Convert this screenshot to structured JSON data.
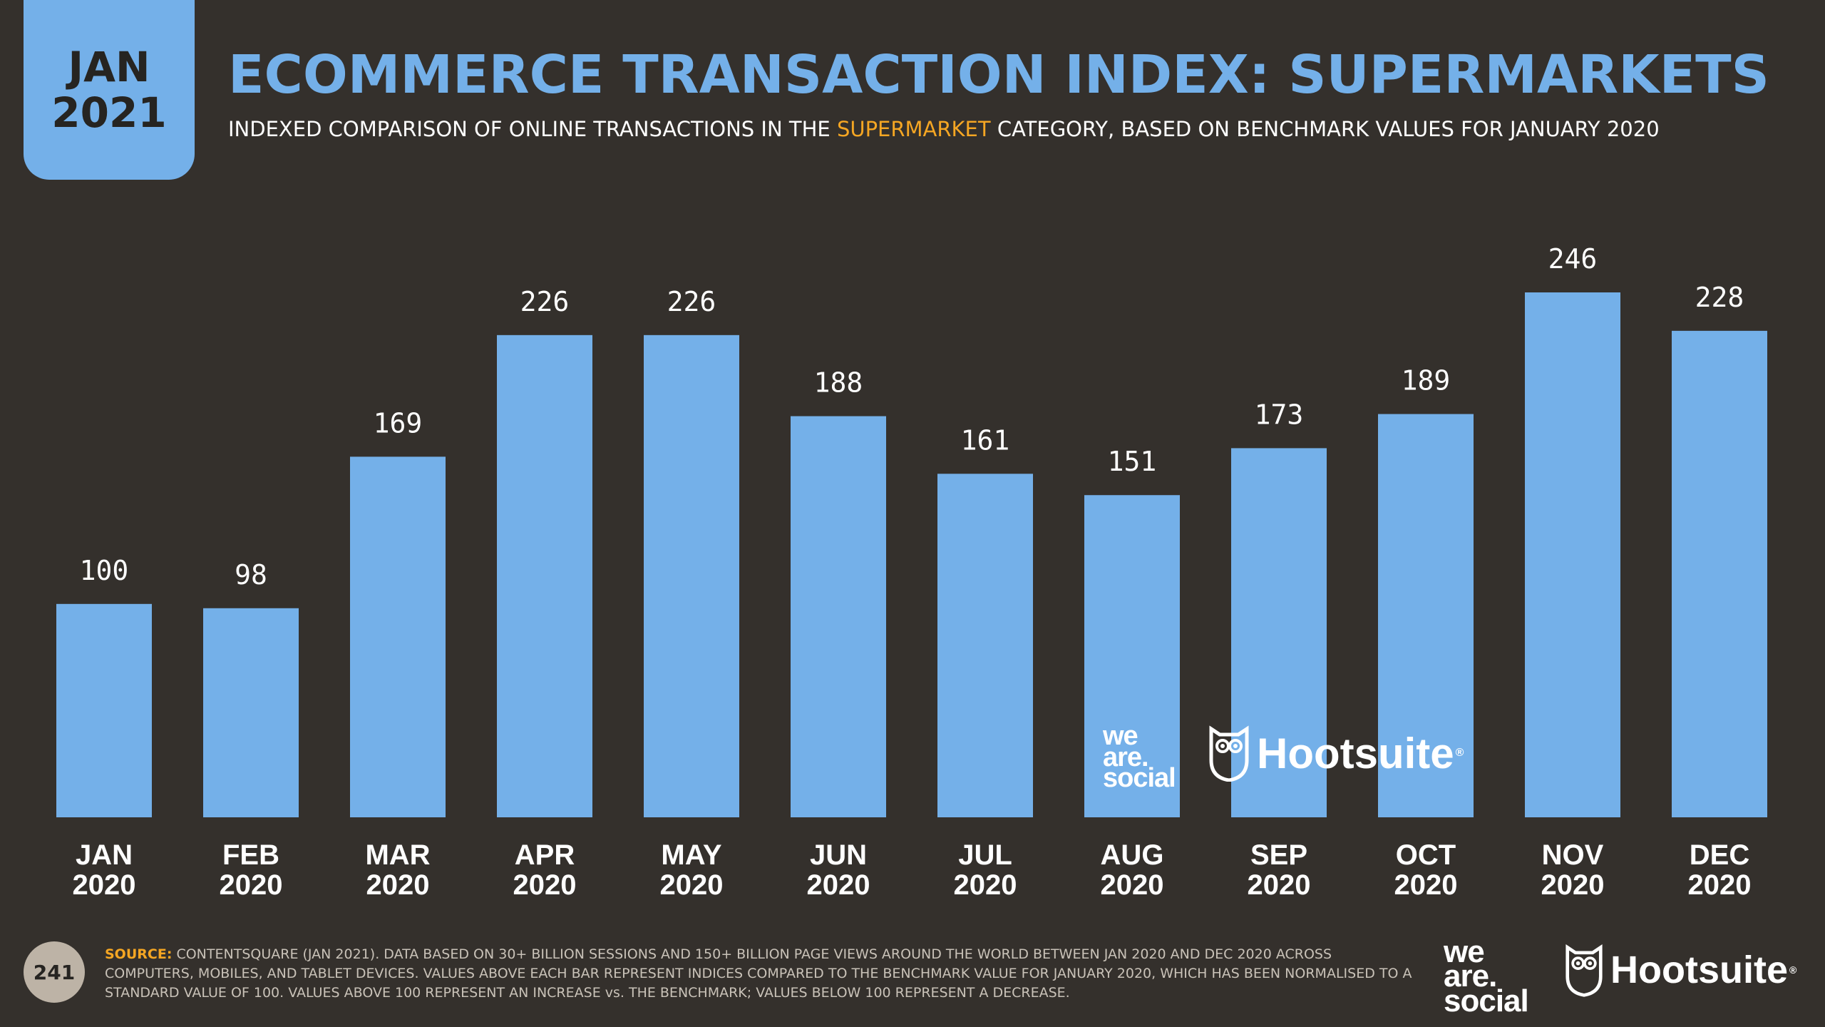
{
  "badge": {
    "month": "JAN",
    "year": "2021"
  },
  "header": {
    "title": "ECOMMERCE TRANSACTION INDEX: SUPERMARKETS",
    "subtitle_before": "INDEXED COMPARISON OF ONLINE TRANSACTIONS IN THE ",
    "subtitle_highlight": "SUPERMARKET",
    "subtitle_after": " CATEGORY, BASED ON BENCHMARK VALUES FOR JANUARY 2020"
  },
  "colors": {
    "background": "#34302c",
    "bar": "#74b0e9",
    "accent": "#f5a623",
    "text": "#ffffff"
  },
  "chart_data": {
    "type": "bar",
    "categories": [
      [
        "JAN",
        "2020"
      ],
      [
        "FEB",
        "2020"
      ],
      [
        "MAR",
        "2020"
      ],
      [
        "APR",
        "2020"
      ],
      [
        "MAY",
        "2020"
      ],
      [
        "JUN",
        "2020"
      ],
      [
        "JUL",
        "2020"
      ],
      [
        "AUG",
        "2020"
      ],
      [
        "SEP",
        "2020"
      ],
      [
        "OCT",
        "2020"
      ],
      [
        "NOV",
        "2020"
      ],
      [
        "DEC",
        "2020"
      ]
    ],
    "values": [
      100,
      98,
      169,
      226,
      226,
      188,
      161,
      151,
      173,
      189,
      246,
      228
    ],
    "data_labels": [
      "100",
      "98",
      "169",
      "226",
      "226",
      "188",
      "161",
      "151",
      "173",
      "189",
      "246",
      "228"
    ],
    "ylim": [
      0,
      246
    ],
    "grid": false,
    "legend": "none"
  },
  "watermark": {
    "brand1": [
      "we",
      "are.",
      "social"
    ],
    "brand2": "Hootsuite"
  },
  "footer": {
    "page_number": "241",
    "source_label": "SOURCE:",
    "source_text": " CONTENTSQUARE (JAN 2021). DATA BASED ON 30+ BILLION SESSIONS AND 150+ BILLION PAGE VIEWS AROUND THE WORLD BETWEEN JAN 2020 AND DEC 2020 ACROSS COMPUTERS, MOBILES, AND TABLET DEVICES. VALUES ABOVE EACH BAR REPRESENT INDICES COMPARED TO THE BENCHMARK VALUE FOR JANUARY 2020, WHICH HAS BEEN NORMALISED TO A STANDARD VALUE OF 100. VALUES ABOVE 100 REPRESENT AN INCREASE vs. THE BENCHMARK; VALUES BELOW 100 REPRESENT A DECREASE.",
    "brand1": [
      "we",
      "are.",
      "social"
    ],
    "brand2": "Hootsuite"
  }
}
